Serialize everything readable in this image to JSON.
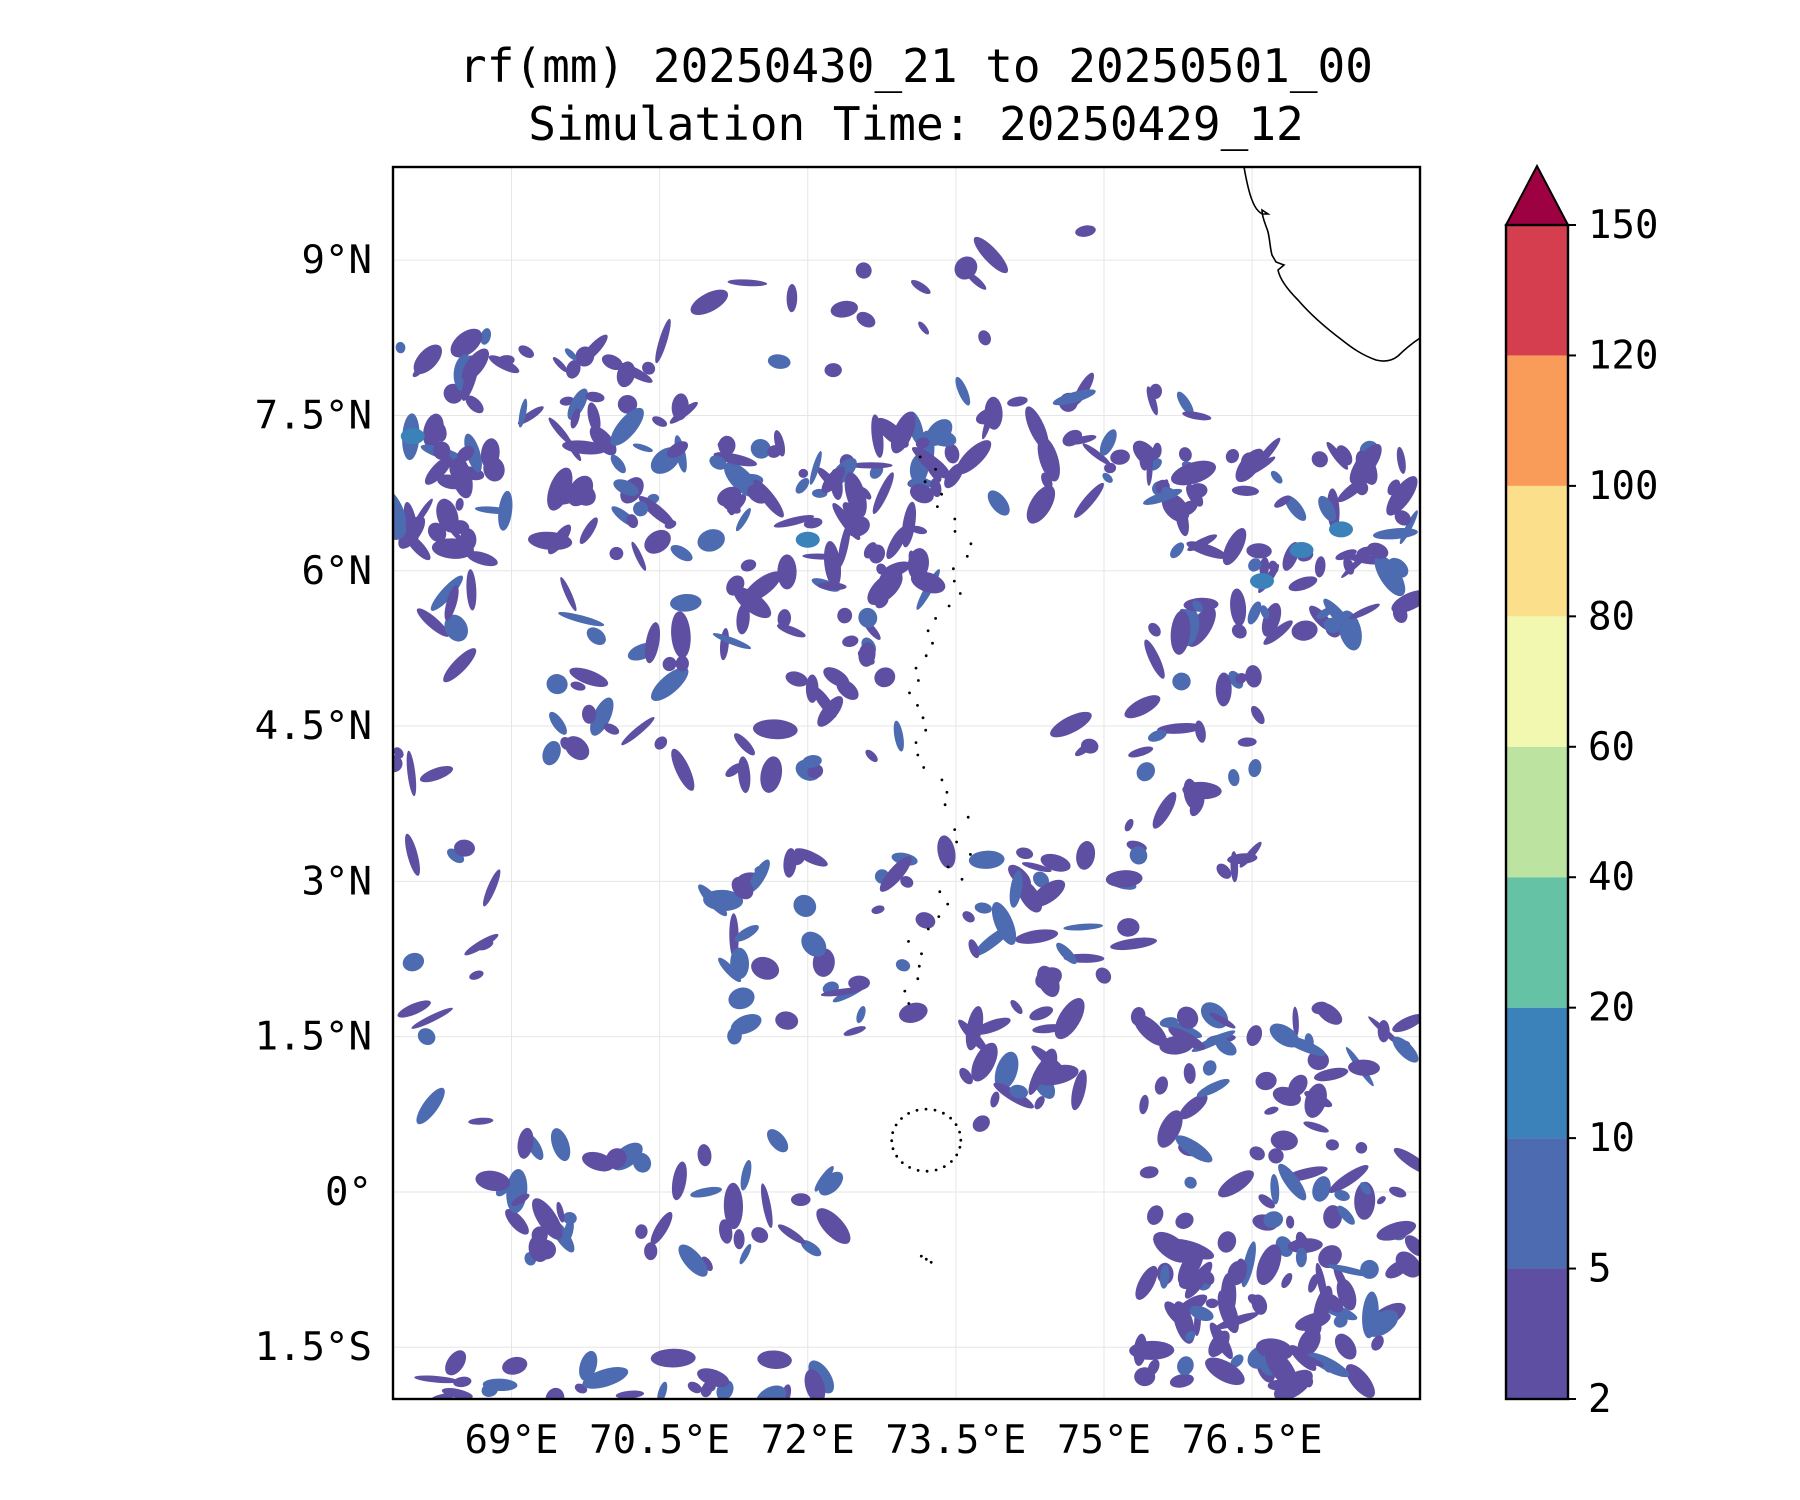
{
  "title": {
    "line1": "rf(mm) 20250430_21 to 20250501_00",
    "line2": "Simulation Time: 20250429_12"
  },
  "map": {
    "lon_range": [
      67.8,
      78.2
    ],
    "lat_range": [
      -2.0,
      9.9
    ],
    "lon_ticks": [
      {
        "value": 69.0,
        "label": "69°E"
      },
      {
        "value": 70.5,
        "label": "70.5°E"
      },
      {
        "value": 72.0,
        "label": "72°E"
      },
      {
        "value": 73.5,
        "label": "73.5°E"
      },
      {
        "value": 75.0,
        "label": "75°E"
      },
      {
        "value": 76.5,
        "label": "76.5°E"
      }
    ],
    "lat_ticks": [
      {
        "value": 9.0,
        "label": "9°N"
      },
      {
        "value": 7.5,
        "label": "7.5°N"
      },
      {
        "value": 6.0,
        "label": "6°N"
      },
      {
        "value": 4.5,
        "label": "4.5°N"
      },
      {
        "value": 3.0,
        "label": "3°N"
      },
      {
        "value": 1.5,
        "label": "1.5°N"
      },
      {
        "value": 0.0,
        "label": "0°"
      },
      {
        "value": -1.5,
        "label": "1.5°S"
      }
    ],
    "gridlines": true,
    "coastline_label_free": true
  },
  "colorbar": {
    "levels": [
      "2",
      "5",
      "10",
      "20",
      "40",
      "60",
      "80",
      "100",
      "120",
      "150"
    ],
    "colors": [
      "#5e4fa2",
      "#4c6bb0",
      "#3a82b9",
      "#66c2a5",
      "#bce3a0",
      "#f2f8b0",
      "#fbdf8b",
      "#f99c5a",
      "#d53e4f"
    ],
    "extend_color": "#9e0142",
    "extend": "max"
  },
  "colors": {
    "rain_low": "#5e4fa2",
    "rain_mid": "#4c6bb0",
    "rain_high": "#3a82b9",
    "coast": "#000000",
    "grid": "#e6e6e6"
  }
}
